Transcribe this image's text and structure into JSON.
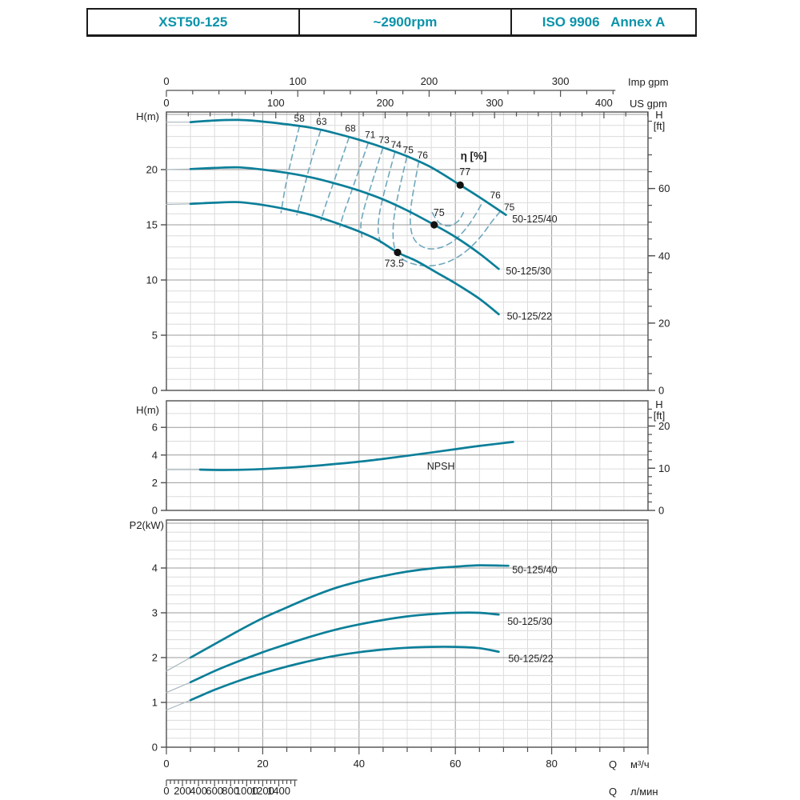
{
  "header": {
    "model": "XST50-125",
    "speed": "~2900rpm",
    "standard": "ISO 9906   Annex A"
  },
  "colors": {
    "accent": "#0b93aa",
    "curve": "#0c7f99",
    "contour": "#6fa8bd",
    "extension": "#a9b8be",
    "grid_minor": "#dcdcdc",
    "grid_major": "#9b9b9b",
    "frame": "#4f4f4f",
    "text": "#1e1e1e",
    "dot": "#111111"
  },
  "axes": {
    "imp_gpm": {
      "label": "Imp gpm",
      "ticks": [
        0,
        100,
        200,
        300
      ],
      "minor_step": 20,
      "max": 340
    },
    "us_gpm": {
      "label": "US gpm",
      "ticks": [
        0,
        100,
        200,
        300,
        400
      ],
      "minor_step": 20,
      "max": 440
    },
    "q_m3h": {
      "label_q": "Q",
      "label_unit": "м³/ч",
      "ticks": [
        0,
        20,
        40,
        60,
        80
      ],
      "minor_step": 5,
      "max": 100
    },
    "q_lmin": {
      "label_q": "Q",
      "label_unit": "л/мин",
      "ticks": [
        0,
        200,
        400,
        600,
        800,
        1000,
        1200,
        1400
      ],
      "minor_step": 50,
      "max": 1600
    }
  },
  "chart_data": [
    {
      "type": "line",
      "name": "head-vs-flow",
      "x_axis": {
        "unit": "м³/ч",
        "range": [
          0,
          100
        ],
        "grid_step": 5,
        "major_step": 20
      },
      "y_left": {
        "label": "H(m)",
        "ticks": [
          0,
          5,
          10,
          15,
          20
        ],
        "minor_step": 1,
        "major_step": 5,
        "range": [
          0,
          25.2
        ]
      },
      "y_right": {
        "label_line1": "H",
        "label_line2": "[ft]",
        "ticks": [
          0,
          20,
          40,
          60
        ],
        "minor_step": 5
      },
      "series": [
        {
          "name": "50-125/40",
          "extension": [
            [
              0,
              24.3
            ],
            [
              5,
              24.3
            ]
          ],
          "points": [
            [
              5,
              24.3
            ],
            [
              10,
              24.45
            ],
            [
              15,
              24.5
            ],
            [
              20,
              24.35
            ],
            [
              25,
              24.1
            ],
            [
              30,
              23.8
            ],
            [
              35,
              23.3
            ],
            [
              40,
              22.7
            ],
            [
              45,
              22.0
            ],
            [
              50,
              21.2
            ],
            [
              55,
              20.2
            ],
            [
              61,
              18.6
            ],
            [
              65,
              17.5
            ],
            [
              70.5,
              15.9
            ]
          ],
          "label_at": [
            71.8,
            15.2
          ],
          "bep": {
            "q": 61,
            "h": 18.6,
            "eff_label": "77",
            "eff_label_at": [
              62,
              19.5
            ]
          }
        },
        {
          "name": "50-125/30",
          "extension": [
            [
              0,
              20.0
            ],
            [
              5,
              20.05
            ]
          ],
          "points": [
            [
              5,
              20.05
            ],
            [
              10,
              20.15
            ],
            [
              15,
              20.2
            ],
            [
              20,
              20.0
            ],
            [
              25,
              19.7
            ],
            [
              30,
              19.3
            ],
            [
              35,
              18.75
            ],
            [
              40,
              18.1
            ],
            [
              45,
              17.3
            ],
            [
              50,
              16.3
            ],
            [
              55.6,
              15.0
            ],
            [
              60,
              13.9
            ],
            [
              65,
              12.4
            ],
            [
              69,
              11.0
            ]
          ],
          "label_at": [
            70.5,
            10.5
          ],
          "bep": {
            "q": 55.6,
            "h": 15.0,
            "eff_label": "75",
            "eff_label_at": [
              56.6,
              15.8
            ]
          }
        },
        {
          "name": "50-125/22",
          "extension": [
            [
              0,
              16.85
            ],
            [
              5,
              16.9
            ]
          ],
          "points": [
            [
              5,
              16.9
            ],
            [
              10,
              17.0
            ],
            [
              15,
              17.05
            ],
            [
              20,
              16.8
            ],
            [
              25,
              16.4
            ],
            [
              30,
              15.9
            ],
            [
              35,
              15.2
            ],
            [
              40,
              14.4
            ],
            [
              44,
              13.6
            ],
            [
              48,
              12.5
            ],
            [
              52,
              11.7
            ],
            [
              56,
              10.7
            ],
            [
              60,
              9.7
            ],
            [
              65,
              8.3
            ],
            [
              69,
              6.9
            ]
          ],
          "label_at": [
            70.7,
            6.4
          ],
          "bep": {
            "q": 48,
            "h": 12.5,
            "eff_label": "73.5",
            "eff_label_at": [
              47.3,
              11.2
            ]
          }
        }
      ],
      "efficiency_label": {
        "text": "η [%]",
        "at": [
          63.8,
          20.9
        ]
      },
      "efficiency_contours": [
        {
          "label": "58",
          "label_at": [
            27.6,
            24.35
          ],
          "points": [
            [
              27.6,
              23.9
            ],
            [
              26.2,
              21.4
            ],
            [
              25.1,
              19.3
            ],
            [
              24.4,
              17.7
            ],
            [
              23.8,
              16.1
            ]
          ]
        },
        {
          "label": "63",
          "label_at": [
            32.2,
            24.05
          ],
          "points": [
            [
              32.0,
              23.5
            ],
            [
              30.2,
              21.0
            ],
            [
              28.9,
              18.9
            ],
            [
              27.9,
              17.3
            ],
            [
              27.1,
              15.9
            ]
          ]
        },
        {
          "label": "68",
          "label_at": [
            38.2,
            23.45
          ],
          "points": [
            [
              37.9,
              22.9
            ],
            [
              35.8,
              20.2
            ],
            [
              34.2,
              18.2
            ],
            [
              33.0,
              16.7
            ],
            [
              32.1,
              15.4
            ]
          ]
        },
        {
          "label": "71",
          "label_at": [
            42.3,
            22.85
          ],
          "points": [
            [
              41.9,
              22.4
            ],
            [
              39.6,
              19.5
            ],
            [
              38.0,
              17.5
            ],
            [
              36.8,
              16.0
            ],
            [
              36.0,
              14.8
            ]
          ]
        },
        {
          "label": "73",
          "label_at": [
            45.2,
            22.4
          ],
          "points": [
            [
              44.9,
              21.9
            ],
            [
              42.6,
              18.7
            ],
            [
              41.2,
              16.7
            ],
            [
              40.4,
              15.1
            ],
            [
              40.6,
              13.9
            ]
          ]
        },
        {
          "label": "74",
          "label_at": [
            47.7,
            21.95
          ],
          "points": [
            [
              47.4,
              21.5
            ],
            [
              45.2,
              17.9
            ],
            [
              44.2,
              15.9
            ],
            [
              44.0,
              14.3
            ],
            [
              44.7,
              13.1
            ]
          ]
        },
        {
          "label": "75",
          "label_at": [
            50.2,
            21.5
          ],
          "points": [
            [
              49.9,
              21.1
            ],
            [
              47.9,
              17.3
            ],
            [
              47.1,
              14.8
            ],
            [
              47.4,
              12.9
            ],
            [
              49.0,
              11.9
            ],
            [
              51.8,
              11.4
            ],
            [
              55.2,
              11.3
            ],
            [
              58.8,
              11.7
            ],
            [
              62.2,
              12.6
            ],
            [
              65.2,
              13.9
            ],
            [
              67.6,
              15.3
            ],
            [
              69.3,
              16.2
            ]
          ]
        },
        {
          "label": "76",
          "label_at": [
            53.2,
            21.0
          ],
          "points": [
            [
              52.4,
              20.7
            ],
            [
              50.9,
              17.0
            ],
            [
              50.7,
              14.9
            ],
            [
              51.6,
              13.6
            ],
            [
              53.8,
              12.9
            ],
            [
              56.6,
              12.9
            ],
            [
              59.5,
              13.5
            ],
            [
              61.9,
              14.5
            ],
            [
              64.0,
              15.8
            ],
            [
              65.7,
              17.1
            ]
          ]
        },
        {
          "label": "",
          "points": [
            [
              55.2,
              16.1
            ],
            [
              56.6,
              15.2
            ],
            [
              58.6,
              14.9
            ],
            [
              60.5,
              15.3
            ],
            [
              61.7,
              16.1
            ]
          ]
        }
      ],
      "right_contour_labels": [
        {
          "text": "76",
          "at": [
            68.3,
            17.4
          ]
        },
        {
          "text": "75",
          "at": [
            71.2,
            16.3
          ]
        }
      ]
    },
    {
      "type": "line",
      "name": "npsh-vs-flow",
      "y_left": {
        "label": "H(m)",
        "ticks": [
          0,
          2,
          4,
          6
        ],
        "minor_step": 1,
        "major_step": 2,
        "range": [
          0,
          7.9
        ]
      },
      "y_right": {
        "label_line1": "H",
        "label_line2": "[ft]",
        "ticks": [
          0,
          10,
          20
        ],
        "minor_step": 2
      },
      "series": [
        {
          "name": "NPSH",
          "extension": [
            [
              0,
              2.95
            ],
            [
              7,
              2.95
            ]
          ],
          "points": [
            [
              7,
              2.95
            ],
            [
              12,
              2.92
            ],
            [
              18,
              2.96
            ],
            [
              25,
              3.08
            ],
            [
              30,
              3.2
            ],
            [
              35,
              3.35
            ],
            [
              40,
              3.52
            ],
            [
              45,
              3.72
            ],
            [
              50,
              3.95
            ],
            [
              55,
              4.18
            ],
            [
              60,
              4.42
            ],
            [
              65,
              4.66
            ],
            [
              72,
              4.95
            ]
          ],
          "label_at": [
            57,
            2.95
          ]
        }
      ]
    },
    {
      "type": "line",
      "name": "power-vs-flow",
      "y_left": {
        "label": "P2(kW)",
        "ticks": [
          0,
          1,
          2,
          3,
          4
        ],
        "minor_step": 0.2,
        "major_step": 1,
        "range": [
          0,
          5.07
        ]
      },
      "series": [
        {
          "name": "50-125/40",
          "extension": [
            [
              0,
              1.7
            ],
            [
              5,
              2.0
            ]
          ],
          "points": [
            [
              5,
              2.0
            ],
            [
              10,
              2.3
            ],
            [
              15,
              2.6
            ],
            [
              20,
              2.88
            ],
            [
              25,
              3.12
            ],
            [
              30,
              3.35
            ],
            [
              35,
              3.55
            ],
            [
              40,
              3.7
            ],
            [
              45,
              3.82
            ],
            [
              50,
              3.92
            ],
            [
              55,
              3.99
            ],
            [
              60,
              4.03
            ],
            [
              65,
              4.06
            ],
            [
              71,
              4.05
            ]
          ],
          "label_at": [
            71.8,
            3.88
          ]
        },
        {
          "name": "50-125/30",
          "extension": [
            [
              0,
              1.22
            ],
            [
              5,
              1.45
            ]
          ],
          "points": [
            [
              5,
              1.45
            ],
            [
              10,
              1.7
            ],
            [
              15,
              1.92
            ],
            [
              20,
              2.12
            ],
            [
              25,
              2.3
            ],
            [
              30,
              2.47
            ],
            [
              35,
              2.62
            ],
            [
              40,
              2.74
            ],
            [
              45,
              2.84
            ],
            [
              50,
              2.92
            ],
            [
              55,
              2.97
            ],
            [
              60,
              3.0
            ],
            [
              65,
              3.0
            ],
            [
              69,
              2.96
            ]
          ],
          "label_at": [
            70.8,
            2.73
          ]
        },
        {
          "name": "50-125/22",
          "extension": [
            [
              0,
              0.83
            ],
            [
              5,
              1.05
            ]
          ],
          "points": [
            [
              5,
              1.05
            ],
            [
              10,
              1.28
            ],
            [
              15,
              1.48
            ],
            [
              20,
              1.65
            ],
            [
              25,
              1.8
            ],
            [
              30,
              1.93
            ],
            [
              35,
              2.04
            ],
            [
              40,
              2.12
            ],
            [
              45,
              2.18
            ],
            [
              50,
              2.22
            ],
            [
              55,
              2.24
            ],
            [
              60,
              2.24
            ],
            [
              65,
              2.21
            ],
            [
              69,
              2.13
            ]
          ],
          "label_at": [
            71,
            1.9
          ]
        }
      ]
    }
  ]
}
